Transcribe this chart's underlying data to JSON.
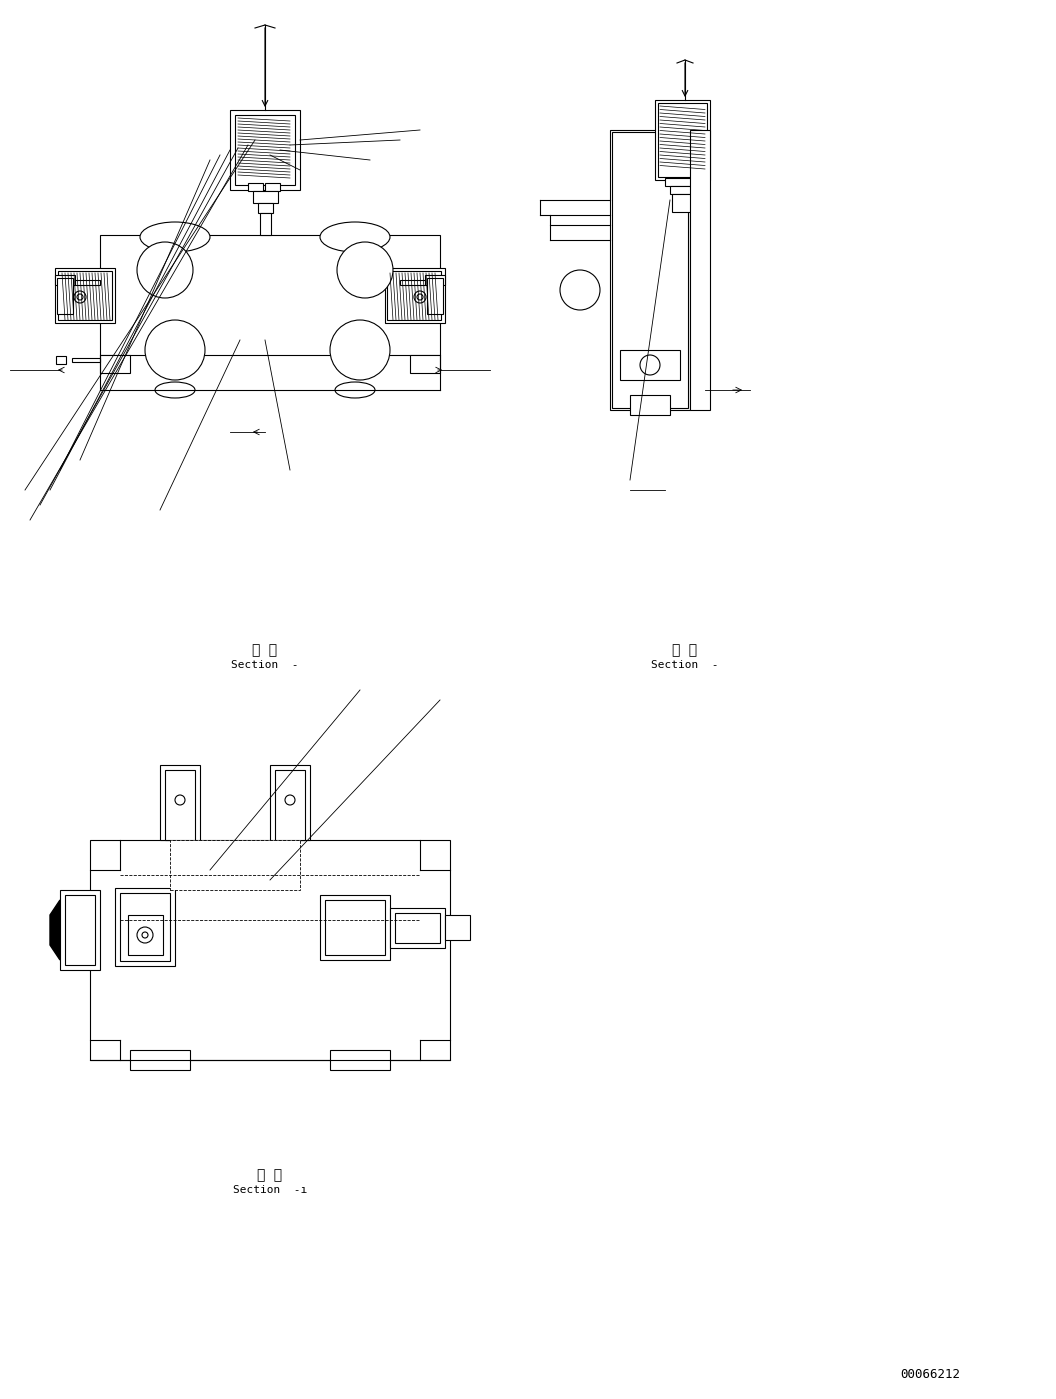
{
  "bg_color": "#ffffff",
  "line_color": "#000000",
  "fig_width": 10.56,
  "fig_height": 13.99,
  "dpi": 100,
  "section_label_top_left": "断 面\nSection  -",
  "section_label_top_right": "断 面\nSection  -",
  "section_label_bottom": "断 面\nSection  -ı",
  "part_number": "00066212"
}
